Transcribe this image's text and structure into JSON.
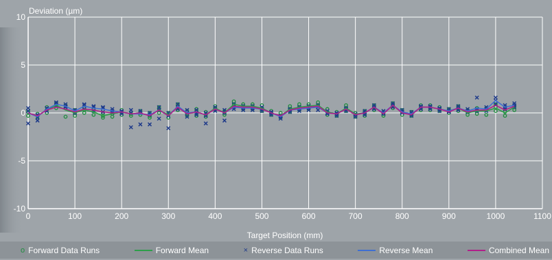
{
  "chart_data": {
    "type": "line",
    "ylabel": "Deviation (µm)",
    "xlabel": "Target Position (mm)",
    "xlim": [
      0,
      1100
    ],
    "ylim": [
      -10,
      10
    ],
    "x_ticks": [
      0,
      100,
      200,
      300,
      400,
      500,
      600,
      700,
      800,
      900,
      1000,
      1100
    ],
    "y_ticks": [
      -10,
      -5,
      0,
      5,
      10
    ],
    "grid": true,
    "legend_position": "bottom",
    "x": [
      0,
      20,
      40,
      60,
      80,
      100,
      120,
      140,
      160,
      180,
      200,
      220,
      240,
      260,
      280,
      300,
      320,
      340,
      360,
      380,
      400,
      420,
      440,
      460,
      480,
      500,
      520,
      540,
      560,
      580,
      600,
      620,
      640,
      660,
      680,
      700,
      720,
      740,
      760,
      780,
      800,
      820,
      840,
      860,
      880,
      900,
      920,
      940,
      960,
      980,
      1000,
      1020,
      1040
    ],
    "series": [
      {
        "name": "Forward Data Runs",
        "kind": "scatter",
        "marker": "circle",
        "color": "#1e8e3e",
        "runs": [
          [
            0.1,
            -0.3,
            0.3,
            0.8,
            0.5,
            0.0,
            0.3,
            0.2,
            -0.3,
            -0.1,
            0.1,
            -0.1,
            0.0,
            -0.3,
            0.4,
            -0.2,
            0.6,
            -0.1,
            0.2,
            -0.2,
            0.5,
            0.0,
            0.9,
            0.7,
            0.7,
            0.5,
            0.0,
            -0.3,
            0.4,
            0.6,
            0.7,
            0.8,
            0.1,
            -0.1,
            0.5,
            -0.2,
            0.0,
            0.6,
            -0.1,
            0.8,
            0.1,
            -0.1,
            0.6,
            0.6,
            0.4,
            0.2,
            0.5,
            0.1,
            0.3,
            0.3,
            0.6,
            0.1,
            0.6
          ],
          [
            -0.3,
            -0.6,
            0.0,
            0.5,
            -0.4,
            -0.3,
            0.0,
            -0.2,
            -0.5,
            -0.4,
            -0.2,
            -0.3,
            -0.2,
            -0.5,
            0.0,
            -0.5,
            0.3,
            -0.3,
            -0.3,
            -0.4,
            0.3,
            -0.2,
            0.6,
            0.4,
            0.4,
            0.2,
            -0.2,
            -0.5,
            0.1,
            0.3,
            0.4,
            0.5,
            -0.2,
            -0.3,
            0.2,
            -0.4,
            -0.3,
            0.3,
            -0.3,
            0.5,
            -0.2,
            -0.3,
            0.3,
            0.3,
            0.2,
            0.0,
            0.2,
            -0.2,
            -0.1,
            -0.2,
            0.2,
            -0.3,
            0.3
          ],
          [
            0.3,
            -0.1,
            0.6,
            1.0,
            0.8,
            0.3,
            0.5,
            0.4,
            0.0,
            0.2,
            0.3,
            0.1,
            0.2,
            0.0,
            0.6,
            0.0,
            0.9,
            0.2,
            0.4,
            0.1,
            0.7,
            0.2,
            1.2,
            0.9,
            0.9,
            0.8,
            0.2,
            0.0,
            0.7,
            0.9,
            0.9,
            1.1,
            0.4,
            0.1,
            0.8,
            0.0,
            0.2,
            0.8,
            0.1,
            1.0,
            0.3,
            0.1,
            0.8,
            0.8,
            0.6,
            0.4,
            0.7,
            0.3,
            0.5,
            0.5,
            0.9,
            0.4,
            0.8
          ]
        ]
      },
      {
        "name": "Forward Mean",
        "kind": "line",
        "color": "#2e9e4a",
        "values": [
          0.0,
          -0.3,
          0.3,
          0.8,
          0.3,
          0.0,
          0.3,
          0.1,
          -0.3,
          -0.1,
          0.1,
          -0.1,
          0.0,
          -0.3,
          0.3,
          -0.2,
          0.6,
          -0.1,
          0.1,
          -0.2,
          0.5,
          0.0,
          0.9,
          0.7,
          0.7,
          0.5,
          0.0,
          -0.3,
          0.4,
          0.6,
          0.7,
          0.8,
          0.1,
          -0.1,
          0.5,
          -0.1,
          0.0,
          0.6,
          -0.1,
          0.8,
          0.0,
          -0.2,
          0.6,
          0.6,
          0.4,
          0.2,
          0.5,
          0.0,
          0.2,
          0.2,
          0.5,
          0.0,
          0.6
        ]
      },
      {
        "name": "Reverse Data Runs",
        "kind": "scatter",
        "marker": "cross",
        "color": "#1e3a8a",
        "runs": [
          [
            0.5,
            -0.2,
            0.5,
            1.1,
            0.9,
            0.3,
            0.8,
            0.6,
            0.6,
            0.4,
            0.2,
            0.3,
            0.2,
            0.0,
            0.6,
            0.0,
            0.9,
            0.3,
            0.3,
            0.0,
            0.6,
            0.3,
            0.9,
            0.7,
            0.7,
            0.6,
            0.1,
            -0.3,
            0.4,
            0.6,
            0.7,
            0.8,
            0.2,
            0.0,
            0.5,
            -0.1,
            0.2,
            0.8,
            0.2,
            1.0,
            0.3,
            0.1,
            0.7,
            0.7,
            0.5,
            0.4,
            0.7,
            0.4,
            1.6,
            0.6,
            1.6,
            0.8,
            1.0
          ],
          [
            -1.1,
            -0.8,
            0.2,
            0.8,
            0.6,
            0.0,
            0.4,
            0.2,
            0.1,
            0.0,
            -0.1,
            -1.5,
            -1.2,
            -1.2,
            -0.6,
            -1.6,
            0.4,
            -0.4,
            -0.2,
            -1.1,
            0.2,
            -0.8,
            0.4,
            0.3,
            0.3,
            0.2,
            -0.2,
            -0.6,
            0.1,
            0.2,
            0.3,
            0.3,
            -0.1,
            -0.3,
            0.2,
            -0.4,
            -0.2,
            0.4,
            -0.1,
            0.6,
            0.0,
            -0.3,
            0.4,
            0.4,
            0.2,
            0.1,
            0.3,
            0.1,
            0.2,
            0.2,
            0.9,
            0.4,
            0.6
          ],
          [
            0.2,
            -0.5,
            0.5,
            1.0,
            0.7,
            0.2,
            0.9,
            0.7,
            0.5,
            0.2,
            0.1,
            0.0,
            0.0,
            -0.2,
            0.3,
            -0.3,
            0.6,
            0.0,
            0.0,
            -0.3,
            0.4,
            0.0,
            0.6,
            0.5,
            0.5,
            0.4,
            0.0,
            -0.4,
            0.3,
            0.4,
            0.5,
            0.6,
            0.0,
            -0.1,
            0.4,
            -0.2,
            0.0,
            0.6,
            0.0,
            0.8,
            0.1,
            -0.1,
            0.6,
            0.6,
            0.4,
            0.2,
            0.5,
            0.2,
            0.4,
            0.4,
            1.3,
            0.6,
            0.8
          ]
        ]
      },
      {
        "name": "Reverse Mean",
        "kind": "line",
        "color": "#3f6fd1",
        "values": [
          0.0,
          -0.4,
          0.4,
          0.9,
          0.7,
          0.2,
          0.7,
          0.5,
          0.4,
          0.2,
          0.1,
          -0.1,
          -0.1,
          -0.2,
          0.3,
          -0.3,
          0.7,
          0.0,
          0.1,
          -0.2,
          0.4,
          0.0,
          0.6,
          0.5,
          0.5,
          0.4,
          0.0,
          -0.4,
          0.3,
          0.4,
          0.5,
          0.6,
          0.0,
          -0.1,
          0.4,
          -0.2,
          0.0,
          0.6,
          0.0,
          0.8,
          0.1,
          -0.1,
          0.6,
          0.6,
          0.4,
          0.2,
          0.5,
          0.2,
          0.5,
          0.4,
          1.3,
          0.6,
          0.8
        ]
      },
      {
        "name": "Combined Mean",
        "kind": "line",
        "color": "#b0208a",
        "values": [
          0.0,
          -0.3,
          0.3,
          0.6,
          0.4,
          0.1,
          0.4,
          0.3,
          0.1,
          0.0,
          0.1,
          -0.1,
          0.0,
          -0.3,
          0.3,
          -0.3,
          0.6,
          -0.1,
          0.1,
          -0.2,
          0.4,
          0.0,
          0.7,
          0.6,
          0.6,
          0.4,
          0.0,
          -0.3,
          0.3,
          0.5,
          0.6,
          0.7,
          0.0,
          -0.1,
          0.4,
          -0.2,
          0.0,
          0.6,
          -0.1,
          0.8,
          0.0,
          -0.2,
          0.6,
          0.6,
          0.4,
          0.1,
          0.5,
          0.1,
          0.3,
          0.3,
          0.8,
          0.3,
          0.7
        ]
      }
    ]
  }
}
